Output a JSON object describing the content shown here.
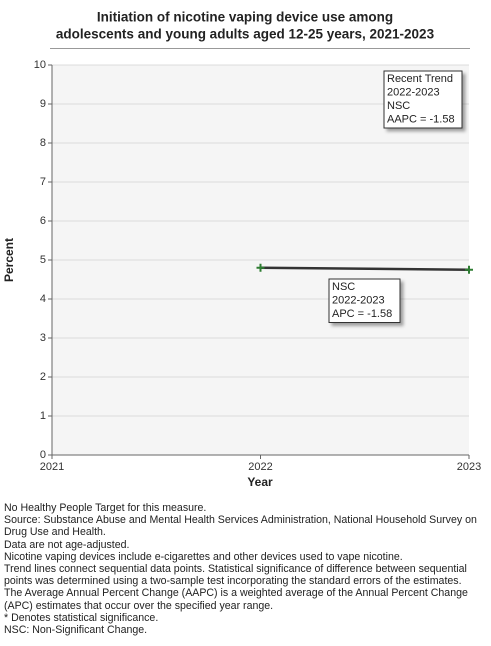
{
  "chart_data": {
    "type": "line",
    "title_lines": [
      "Initiation of nicotine vaping device use among",
      "adolescents and young adults aged 12-25 years, 2021-2023"
    ],
    "xlabel": "Year",
    "ylabel": "Percent",
    "x": [
      2022,
      2023
    ],
    "series": [
      {
        "color": "#333333",
        "marker_color": "#2e7d32",
        "values": [
          4.8,
          4.75
        ]
      }
    ],
    "xlim": [
      2021,
      2023
    ],
    "xticks": [
      2021,
      2022,
      2023
    ],
    "ylim": [
      0,
      10
    ],
    "yticks": [
      0,
      1,
      2,
      3,
      4,
      5,
      6,
      7,
      8,
      9,
      10
    ],
    "grid": true,
    "annotations": [
      {
        "lines": [
          "Recent Trend",
          "2022-2023",
          "NSC",
          "AAPC = -1.58"
        ]
      },
      {
        "lines": [
          "NSC",
          "2022-2023",
          "APC = -1.58"
        ]
      }
    ]
  },
  "notes": [
    "No Healthy People Target for this measure.",
    "Source: Substance Abuse and Mental Health Services Administration, National Household Survey on Drug Use and Health.",
    "Data are not age-adjusted.",
    "Nicotine vaping devices include e-cigarettes and other devices used to vape nicotine.",
    "Trend lines connect sequential data points. Statistical significance of difference between sequential points was determined using a two-sample test incorporating the standard errors of the estimates.",
    "The Average Annual Percent Change (AAPC) is a weighted average of the Annual Percent Change (APC) estimates that occur over the specified year range.",
    "* Denotes statistical significance.",
    "NSC: Non-Significant Change."
  ]
}
